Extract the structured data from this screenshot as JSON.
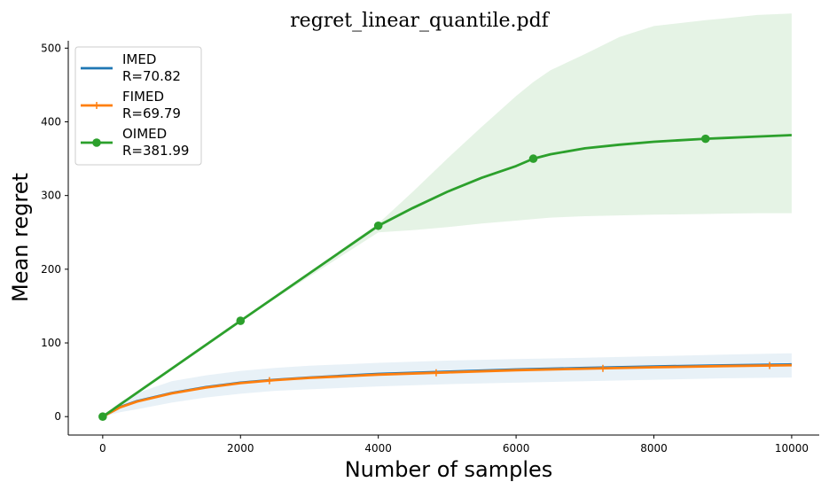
{
  "chart_data": {
    "type": "line",
    "title": "regret_linear_quantile.pdf",
    "xlabel": "Number of samples",
    "ylabel": "Mean regret",
    "xlim": [
      -500,
      10400
    ],
    "ylim": [
      -25,
      510
    ],
    "xticks": [
      0,
      2000,
      4000,
      6000,
      8000,
      10000
    ],
    "yticks": [
      0,
      100,
      200,
      300,
      400,
      500
    ],
    "legend_placement": "top-left",
    "grid": false,
    "series": [
      {
        "name": "IMED",
        "label_line2": "R=70.82",
        "color": "#1f77b4",
        "marker": "none",
        "x": [
          0,
          250,
          500,
          1000,
          1500,
          2000,
          2500,
          3000,
          4000,
          5000,
          6000,
          7000,
          8000,
          9000,
          10000
        ],
        "y": [
          0,
          13,
          21,
          32,
          40,
          46,
          50,
          53,
          58,
          61,
          64,
          66,
          68,
          69.5,
          70.82
        ],
        "band_lower": [
          0,
          6,
          10,
          19,
          26,
          31,
          35,
          37,
          41,
          44,
          46,
          48,
          50,
          52,
          53
        ],
        "band_upper": [
          0,
          20,
          32,
          48,
          56,
          62,
          66,
          69,
          73,
          76,
          78,
          80,
          82,
          84,
          86
        ]
      },
      {
        "name": "FIMED",
        "label_line2": "R=69.79",
        "color": "#ff7f0e",
        "marker": "plus",
        "marker_x": [
          0,
          2420,
          4840,
          7260,
          9680
        ],
        "x": [
          0,
          250,
          500,
          1000,
          1500,
          2000,
          2500,
          3000,
          4000,
          5000,
          6000,
          7000,
          8000,
          9000,
          10000
        ],
        "y": [
          0,
          12.5,
          20.5,
          31.5,
          39.5,
          45.5,
          49.5,
          52.5,
          57,
          60,
          63,
          65,
          67,
          68.5,
          69.79
        ]
      },
      {
        "name": "OIMED",
        "label_line2": "R=381.99",
        "color": "#2ca02c",
        "marker": "circle",
        "marker_x": [
          0,
          2000,
          4000,
          6250,
          8750
        ],
        "x": [
          0,
          2000,
          4000,
          4500,
          5000,
          5500,
          6000,
          6250,
          6500,
          7000,
          7500,
          8000,
          8750,
          9000,
          9500,
          10000
        ],
        "y": [
          0,
          130,
          259,
          283,
          305,
          324,
          340,
          350,
          356,
          364,
          369,
          373,
          377,
          378,
          380,
          381.99
        ],
        "band_lower": [
          0,
          130,
          250,
          253,
          257,
          262,
          266,
          268,
          270,
          272,
          273,
          274,
          275,
          275.5,
          276,
          276
        ],
        "band_upper": [
          0,
          130,
          262,
          305,
          350,
          393,
          435,
          454,
          470,
          492,
          515,
          530,
          538,
          540,
          545,
          547
        ]
      }
    ]
  }
}
